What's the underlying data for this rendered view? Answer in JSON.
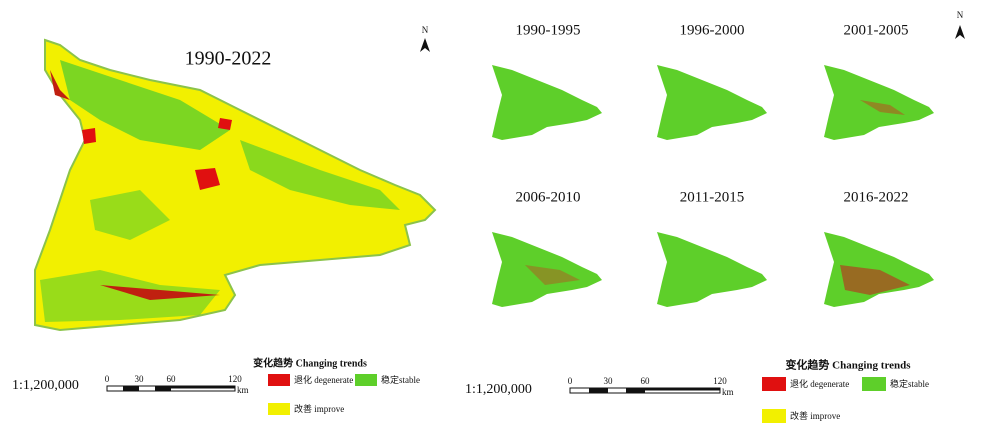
{
  "left_panel": {
    "title": "1990-2022",
    "north": "N",
    "scale_ratio": "1:1,200,000",
    "scale_bar": {
      "labels": [
        "0",
        "30",
        "60",
        "120"
      ],
      "unit": "km"
    },
    "legend": {
      "title": "变化趋势 Changing trends",
      "items": [
        "退化 degenerate",
        "稳定stable",
        "改善 improve"
      ]
    }
  },
  "right_panel": {
    "maps": [
      "1990-1995",
      "1996-2000",
      "2001-2005",
      "2006-2010",
      "2011-2015",
      "2016-2022"
    ],
    "north": "N",
    "scale_ratio": "1:1,200,000",
    "scale_bar": {
      "labels": [
        "0",
        "30",
        "60",
        "120"
      ],
      "unit": "km"
    },
    "legend": {
      "title": "变化趋势 Changing trends",
      "items": [
        "退化 degenerate",
        "稳定stable",
        "改善 improve"
      ]
    }
  }
}
